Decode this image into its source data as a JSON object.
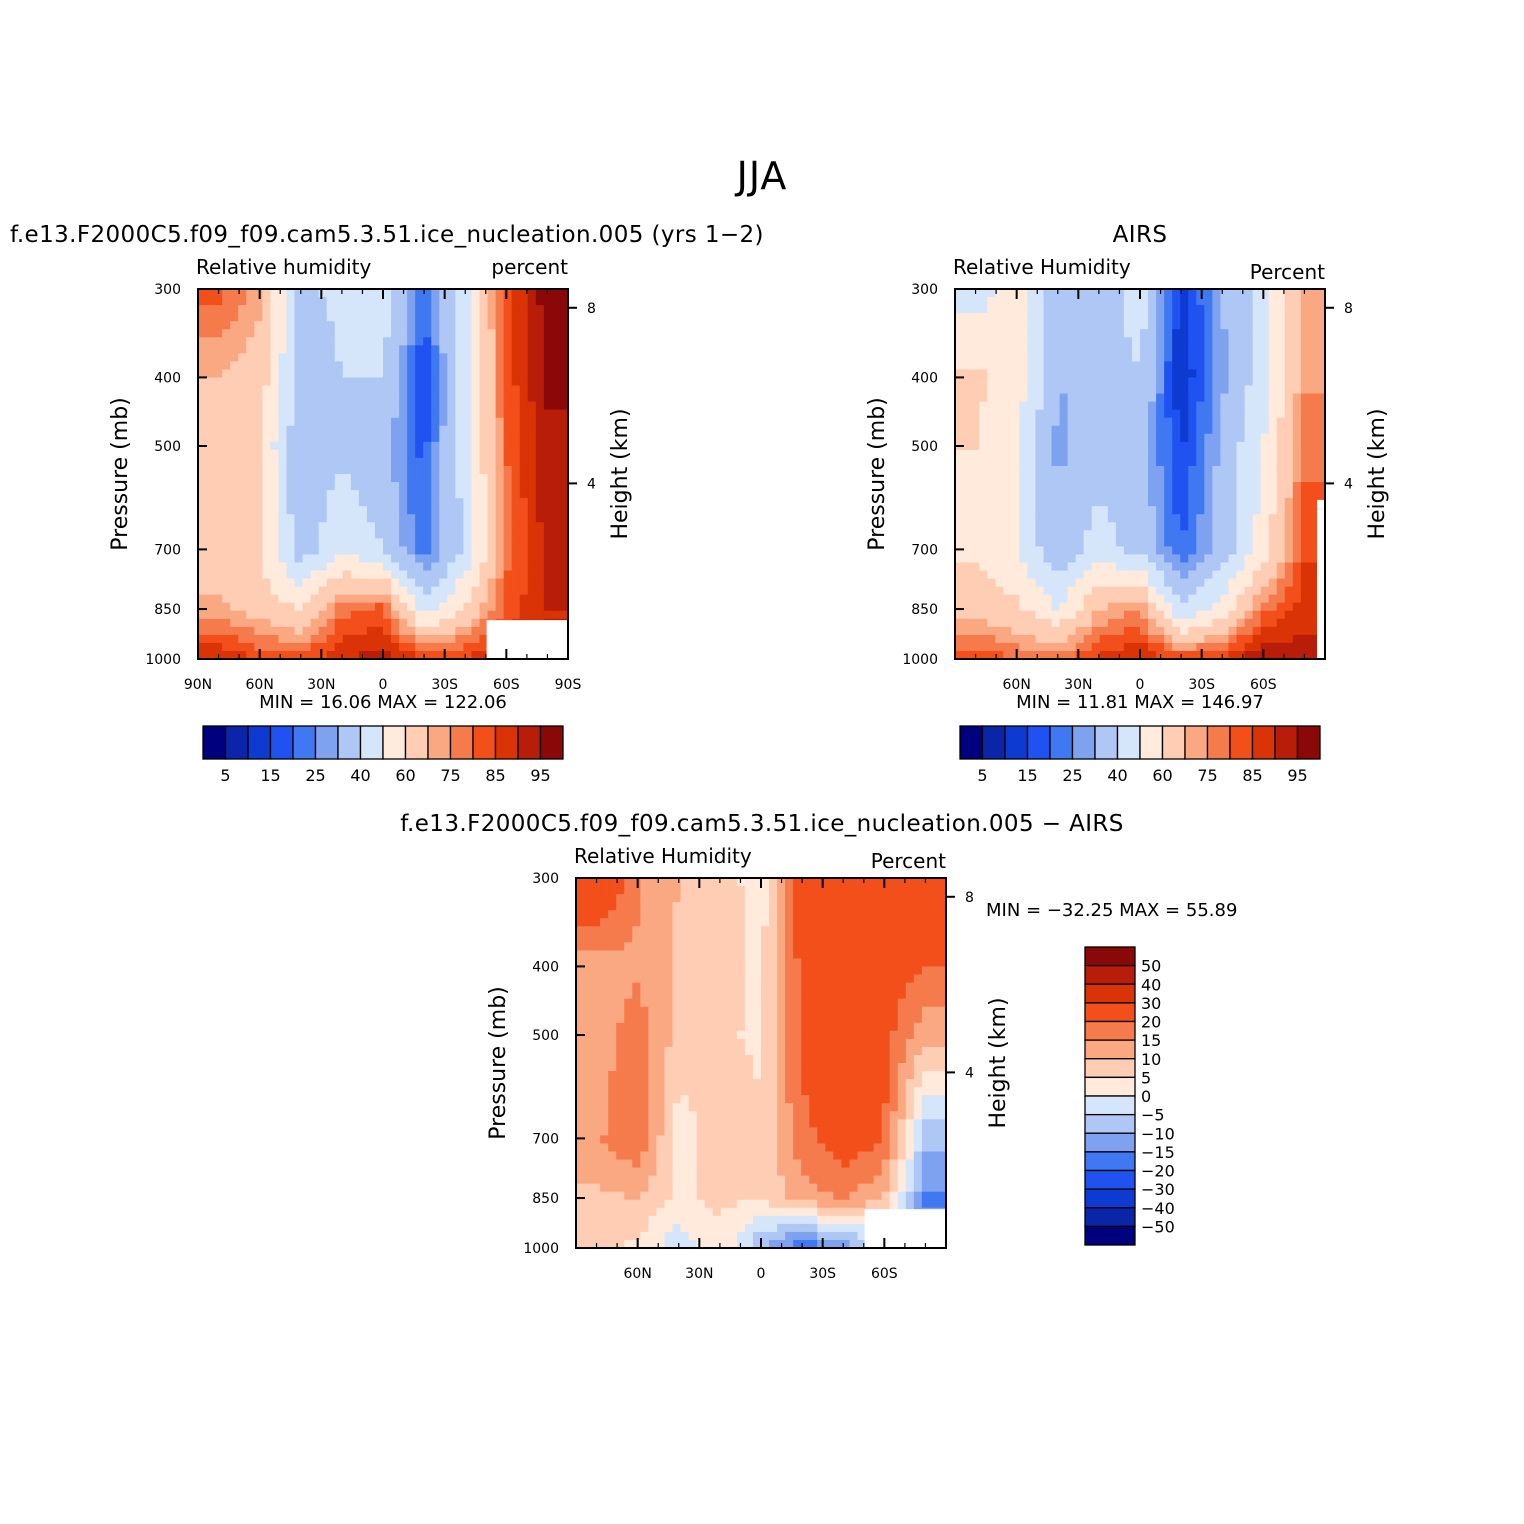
{
  "figure": {
    "title": "JJA"
  },
  "palettes": {
    "abs": [
      "#00007f",
      "#0b25a8",
      "#0d3bd2",
      "#1f52f0",
      "#3f78f0",
      "#7fa2f0",
      "#aec7f5",
      "#d6e6fa",
      "#ffeadb",
      "#ffcdb4",
      "#faa882",
      "#f57a4c",
      "#f24f1b",
      "#da3306",
      "#b81d0a",
      "#8a0808"
    ],
    "diff": [
      "#8a0808",
      "#b81d0a",
      "#da3306",
      "#f24f1b",
      "#f57a4c",
      "#faa882",
      "#ffcdb4",
      "#ffeadb",
      "#d6e6fa",
      "#aec7f5",
      "#7fa2f0",
      "#3f78f0",
      "#1f52f0",
      "#0d3bd2",
      "#0b25a8",
      "#00007f"
    ]
  },
  "chart_data": [
    {
      "type": "heatmap",
      "title": "f.e13.F2000C5.f09_f09.cam5.3.51.ice_nucleation.005 (yrs 1−2)",
      "left_label": "Relative  humidity",
      "right_label": "percent",
      "xlabel": "",
      "ylabel": "Pressure  (mb)",
      "y2label": "Height  (km)",
      "x_range": [
        90,
        -90
      ],
      "x_ticks": [
        90,
        60,
        30,
        0,
        -30,
        -60,
        -90
      ],
      "x_ticklabels": [
        "90N",
        "60N",
        "30N",
        "0",
        "30S",
        "60S",
        "90S"
      ],
      "y_range": [
        300,
        1000
      ],
      "y_scale": "log",
      "y_ticks": [
        300,
        400,
        500,
        700,
        850,
        1000
      ],
      "y_ticklabels": [
        "300",
        "400",
        "500",
        "700",
        "850",
        "1000"
      ],
      "y2_ticks": [
        {
          "label": "8",
          "value": 8
        },
        {
          "label": "4",
          "value": 4
        }
      ],
      "min_max_text": "MIN  =    16.06    MAX  =  122.06",
      "colorbar": {
        "orientation": "horizontal",
        "levels": [
          5,
          10,
          15,
          20,
          25,
          30,
          40,
          50,
          60,
          70,
          75,
          80,
          85,
          90,
          95
        ],
        "labels": [
          "5",
          "15",
          "25",
          "40",
          "60",
          "75",
          "85",
          "95"
        ]
      },
      "lat": [
        80,
        60,
        40,
        20,
        0,
        -20,
        -40,
        -60,
        -80
      ],
      "plev": [
        300,
        400,
        500,
        700,
        850,
        1000
      ],
      "values": [
        [
          82,
          72,
          38,
          42,
          46,
          22,
          48,
          84,
          98
        ],
        [
          70,
          66,
          35,
          40,
          40,
          14,
          45,
          82,
          96
        ],
        [
          66,
          60,
          32,
          38,
          32,
          18,
          45,
          80,
          94
        ],
        [
          62,
          60,
          34,
          48,
          40,
          20,
          42,
          78,
          92
        ],
        [
          72,
          66,
          60,
          78,
          82,
          45,
          62,
          82,
          90
        ],
        [
          90,
          84,
          82,
          90,
          92,
          86,
          86,
          90,
          90
        ]
      ],
      "missing_region": "bottom-right"
    },
    {
      "type": "heatmap",
      "title": "AIRS",
      "left_label": "Relative  Humidity",
      "right_label": "Percent",
      "xlabel": "",
      "ylabel": "Pressure  (mb)",
      "y2label": "Height  (km)",
      "x_range": [
        90,
        -90
      ],
      "x_ticks": [
        60,
        30,
        0,
        -30,
        -60
      ],
      "x_ticklabels": [
        "60N",
        "30N",
        "0",
        "30S",
        "60S"
      ],
      "y_range": [
        300,
        1000
      ],
      "y_scale": "log",
      "y_ticks": [
        300,
        400,
        500,
        700,
        850,
        1000
      ],
      "y_ticklabels": [
        "300",
        "400",
        "500",
        "700",
        "850",
        "1000"
      ],
      "y2_ticks": [
        {
          "label": "8",
          "value": 8
        },
        {
          "label": "4",
          "value": 4
        }
      ],
      "min_max_text": "MIN  =    11.81    MAX  =  146.97",
      "colorbar": {
        "orientation": "horizontal",
        "levels": [
          5,
          10,
          15,
          20,
          25,
          30,
          40,
          50,
          60,
          70,
          75,
          80,
          85,
          90,
          95
        ],
        "labels": [
          "5",
          "15",
          "25",
          "40",
          "60",
          "75",
          "85",
          "95"
        ]
      },
      "lat": [
        80,
        60,
        40,
        20,
        0,
        -20,
        -40,
        -60,
        -80
      ],
      "plev": [
        300,
        400,
        500,
        700,
        850,
        1000
      ],
      "values": [
        [
          45,
          55,
          32,
          34,
          46,
          12,
          30,
          45,
          72
        ],
        [
          62,
          55,
          30,
          32,
          40,
          10,
          28,
          46,
          74
        ],
        [
          60,
          52,
          28,
          34,
          34,
          14,
          32,
          50,
          78
        ],
        [
          58,
          50,
          32,
          45,
          36,
          20,
          34,
          55,
          84
        ],
        [
          66,
          62,
          50,
          70,
          75,
          40,
          55,
          78,
          88
        ],
        [
          84,
          80,
          78,
          86,
          90,
          84,
          86,
          96,
          92
        ]
      ],
      "missing_region": "right-edge"
    },
    {
      "type": "heatmap",
      "title": "f.e13.F2000C5.f09_f09.cam5.3.51.ice_nucleation.005  −  AIRS",
      "left_label": "Relative  Humidity",
      "right_label": "Percent",
      "xlabel": "",
      "ylabel": "Pressure  (mb)",
      "y2label": "Height  (km)",
      "x_range": [
        90,
        -90
      ],
      "x_ticks": [
        60,
        30,
        0,
        -30,
        -60
      ],
      "x_ticklabels": [
        "60N",
        "30N",
        "0",
        "30S",
        "60S"
      ],
      "y_range": [
        300,
        1000
      ],
      "y_scale": "log",
      "y_ticks": [
        300,
        400,
        500,
        700,
        850,
        1000
      ],
      "y_ticklabels": [
        "300",
        "400",
        "500",
        "700",
        "850",
        "1000"
      ],
      "y2_ticks": [
        {
          "label": "8",
          "value": 8
        },
        {
          "label": "4",
          "value": 4
        }
      ],
      "min_max_text": "MIN  =  −32.25    MAX  =    55.89",
      "colorbar": {
        "orientation": "vertical",
        "levels": [
          50,
          40,
          30,
          20,
          15,
          10,
          5,
          0,
          -5,
          -10,
          -15,
          -20,
          -30,
          -40,
          -50
        ],
        "labels": [
          "50",
          "40",
          "30",
          "20",
          "15",
          "10",
          "5",
          "0",
          "−5",
          "−10",
          "−15",
          "−20",
          "−30",
          "−40",
          "−50"
        ]
      },
      "lat": [
        80,
        60,
        40,
        20,
        0,
        -20,
        -40,
        -60,
        -80
      ],
      "plev": [
        300,
        400,
        500,
        700,
        850,
        1000
      ],
      "values": [
        [
          30,
          16,
          10,
          8,
          2,
          24,
          26,
          28,
          26
        ],
        [
          12,
          14,
          9,
          7,
          4,
          22,
          24,
          24,
          20
        ],
        [
          12,
          18,
          8,
          6,
          4,
          22,
          26,
          22,
          12
        ],
        [
          14,
          20,
          2,
          8,
          6,
          18,
          24,
          20,
          -8
        ],
        [
          9,
          10,
          4,
          6,
          6,
          12,
          16,
          10,
          -16
        ],
        [
          6,
          4,
          -4,
          4,
          -10,
          -20,
          -14,
          -4,
          -8
        ]
      ],
      "missing_region": "bottom-right"
    }
  ]
}
